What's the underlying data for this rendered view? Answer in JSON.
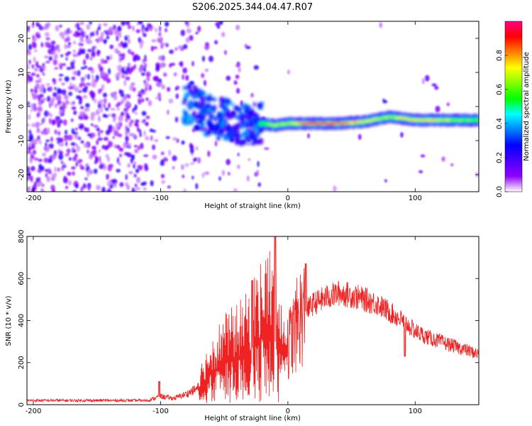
{
  "title": "S206.2025.344.04.47.R07",
  "chart_data": [
    {
      "type": "heatmap",
      "name": "spectrogram",
      "xlabel": "Height of straight line (km)",
      "ylabel": "Frequency (Hz)",
      "xlim": [
        -205,
        150
      ],
      "ylim": [
        -25,
        25
      ],
      "xticks": [
        -200,
        -100,
        0,
        100
      ],
      "yticks": [
        -20,
        -10,
        0,
        10,
        20
      ],
      "colorbar": {
        "label": "Normalized spectral amplitude",
        "range": [
          0,
          1
        ],
        "ticks": [
          "0.0",
          "0.2",
          "0.4",
          "0.6",
          "0.8"
        ],
        "colors": [
          "#ffffff",
          "#8f00ff",
          "#4b00ff",
          "#0000ff",
          "#0080ff",
          "#00ffff",
          "#00ff00",
          "#80ff00",
          "#ffff00",
          "#ff8000",
          "#ff0000",
          "#ff0080"
        ]
      },
      "signal_trace": {
        "x": [
          -80,
          -70,
          -60,
          -50,
          -40,
          -30,
          -20,
          -10,
          0,
          20,
          40,
          60,
          80,
          100,
          120,
          150
        ],
        "freq": [
          1,
          -1,
          -3,
          -4,
          -5,
          -5,
          -5,
          -5.5,
          -5,
          -5,
          -5,
          -4.5,
          -3,
          -4,
          -4,
          -4
        ],
        "amplitude": [
          0.35,
          0.35,
          0.4,
          0.3,
          0.3,
          0.35,
          0.6,
          0.7,
          0.7,
          0.95,
          0.9,
          0.75,
          0.7,
          0.8,
          0.75,
          0.6
        ]
      }
    },
    {
      "type": "line",
      "name": "snr",
      "xlabel": "Height of straight line (km)",
      "ylabel": "SNR (10 * v/v)",
      "xlim": [
        -205,
        150
      ],
      "ylim": [
        0,
        800
      ],
      "xticks": [
        -200,
        -100,
        0,
        100
      ],
      "yticks": [
        0,
        200,
        400,
        600,
        800
      ],
      "color": "#ee2222",
      "envelope": {
        "x": [
          -205,
          -110,
          -100,
          -90,
          -80,
          -70,
          -60,
          -50,
          -40,
          -30,
          -25,
          -20,
          -15,
          -10,
          -5,
          0,
          10,
          20,
          30,
          40,
          50,
          60,
          70,
          80,
          90,
          100,
          110,
          120,
          130,
          140,
          150
        ],
        "y": [
          20,
          20,
          40,
          30,
          50,
          80,
          150,
          200,
          220,
          250,
          300,
          320,
          350,
          300,
          230,
          280,
          420,
          480,
          510,
          530,
          520,
          500,
          480,
          440,
          400,
          350,
          320,
          300,
          280,
          260,
          240
        ]
      },
      "spikes": [
        {
          "x": -101,
          "y": 110
        },
        {
          "x": -28,
          "y": 590
        },
        {
          "x": -10,
          "y": 800
        },
        {
          "x": 14,
          "y": 670
        },
        {
          "x": 92,
          "y": 230
        }
      ]
    }
  ]
}
